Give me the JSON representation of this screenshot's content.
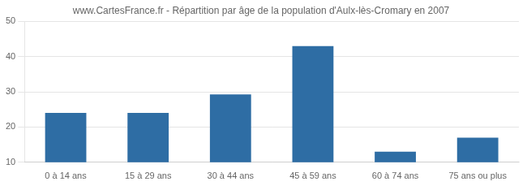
{
  "chart_data": {
    "type": "bar",
    "title": "www.CartesFrance.fr - Répartition par âge de la population d'Aulx-lès-Cromary en 2007",
    "categories": [
      "0 à 14 ans",
      "15 à 29 ans",
      "30 à 44 ans",
      "45 à 59 ans",
      "60 à 74 ans",
      "75 ans ou plus"
    ],
    "values": [
      24.0,
      24.0,
      29.3,
      43.0,
      13.0,
      17.0
    ],
    "color": "#2e6da4",
    "ylim": [
      10,
      50
    ],
    "yticks": [
      10,
      20,
      30,
      40,
      50
    ],
    "grid": true
  }
}
